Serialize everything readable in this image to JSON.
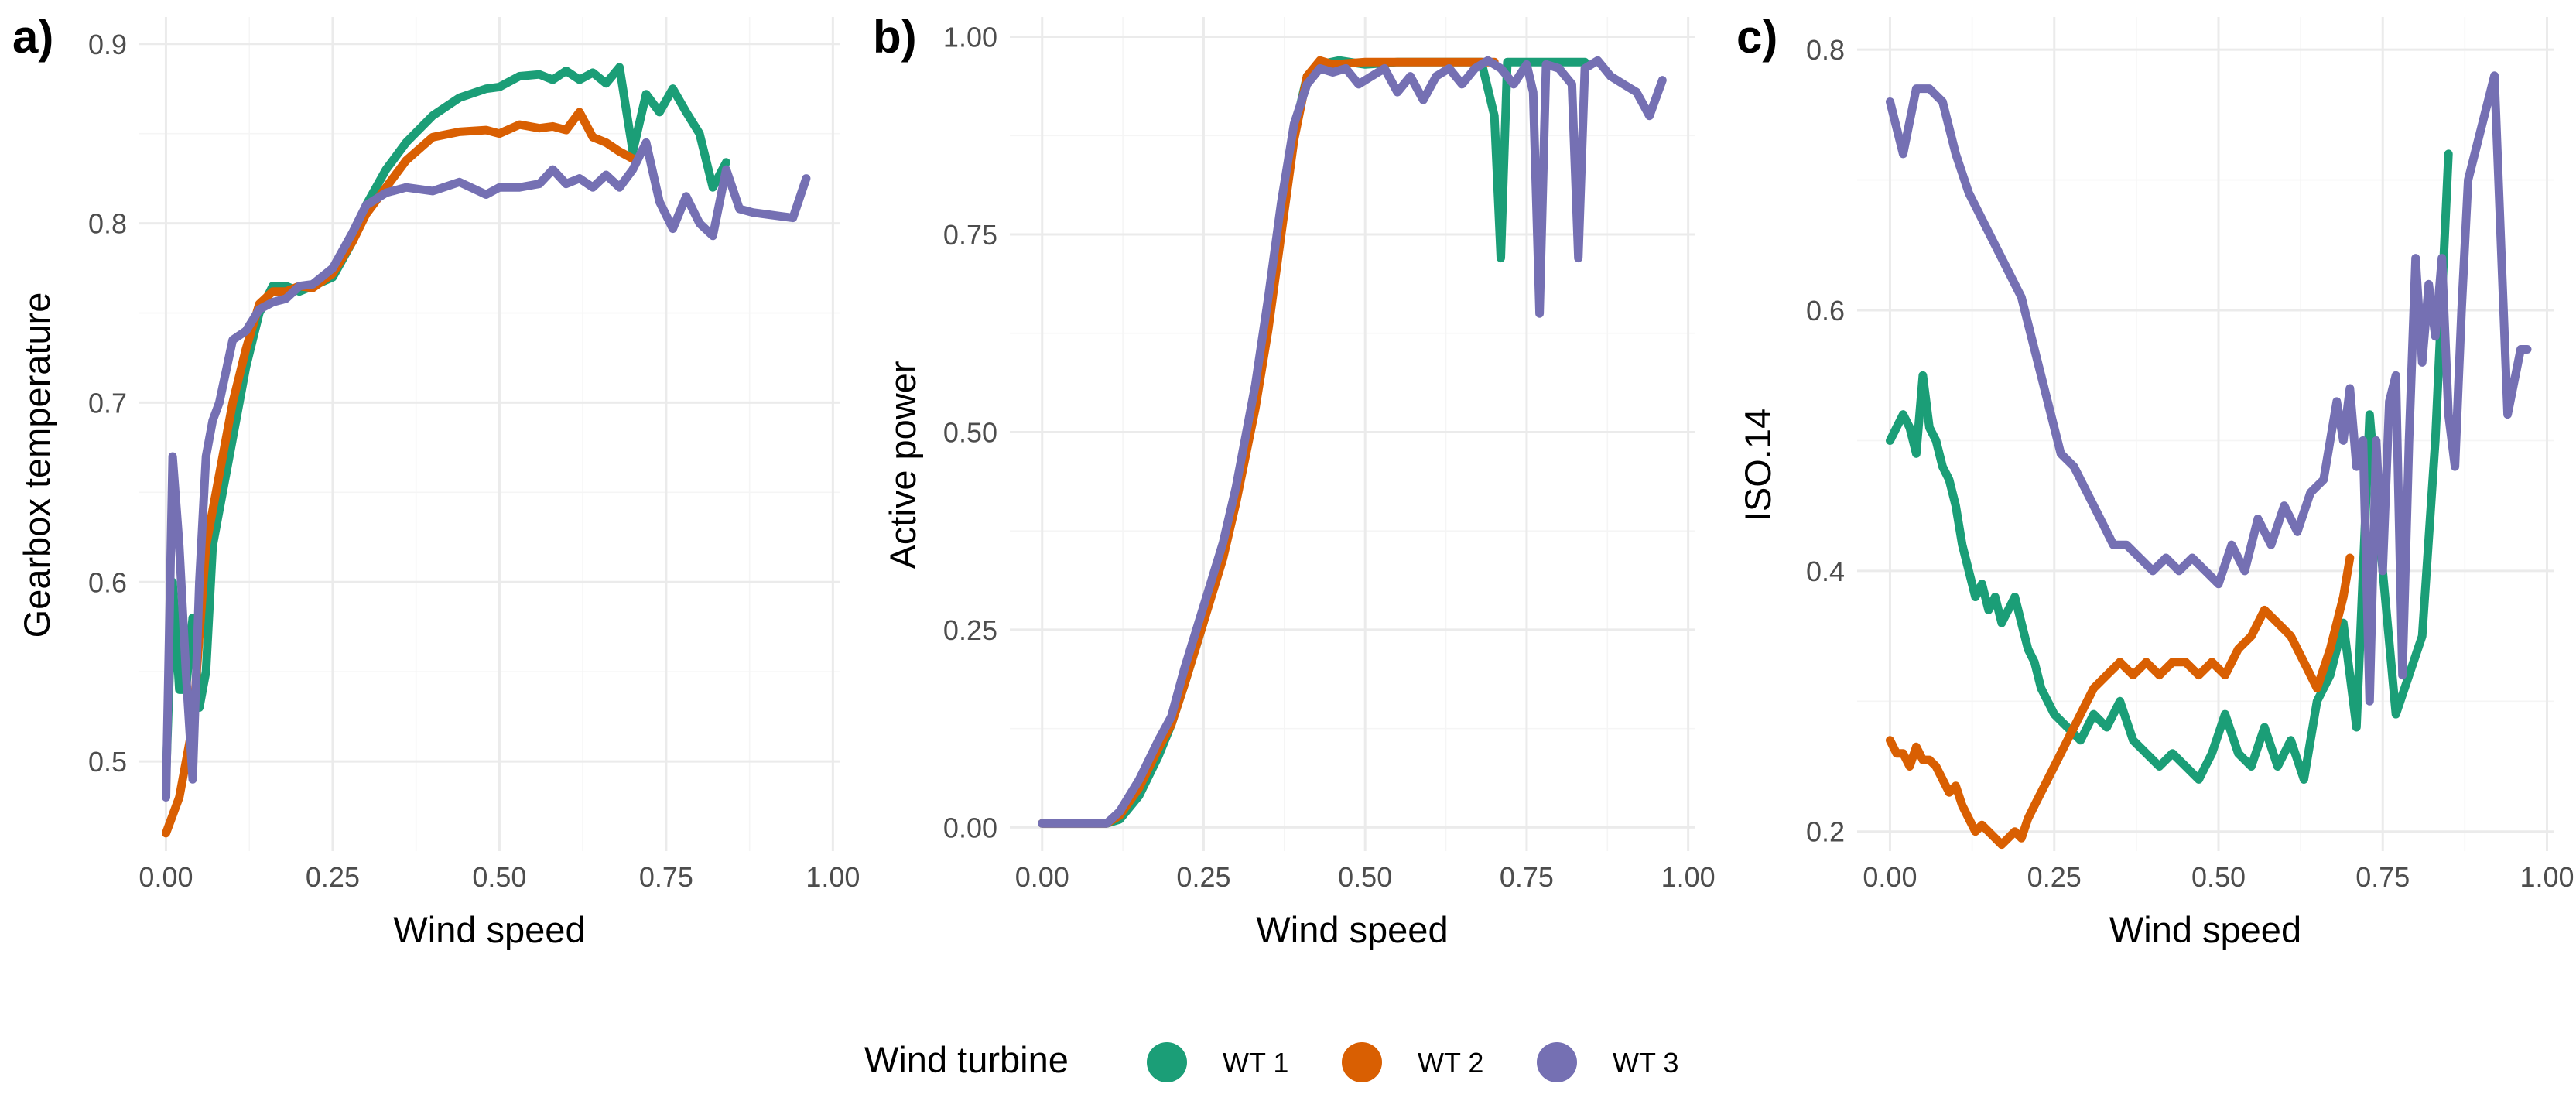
{
  "legend": {
    "title": "Wind turbine",
    "items": [
      {
        "label": "WT 1",
        "color": "#1b9e77"
      },
      {
        "label": "WT 2",
        "color": "#d95f02"
      },
      {
        "label": "WT 3",
        "color": "#7570b3"
      }
    ]
  },
  "chart_data": [
    {
      "type": "line",
      "panel_tag": "a)",
      "title": "",
      "xlabel": "Wind speed",
      "ylabel": "Gearbox temperature",
      "xlim": [
        -0.04,
        1.01
      ],
      "ylim": [
        0.45,
        0.915
      ],
      "xticks": [
        0,
        0.25,
        0.5,
        0.75,
        1.0
      ],
      "xtick_labels": [
        "0.00",
        "0.25",
        "0.50",
        "0.75",
        "1.00"
      ],
      "yticks": [
        0.5,
        0.6,
        0.7,
        0.8,
        0.9
      ],
      "ytick_labels": [
        "0.5",
        "0.6",
        "0.7",
        "0.8",
        "0.9"
      ],
      "series": [
        {
          "name": "WT 1",
          "x": [
            0.0,
            0.01,
            0.02,
            0.03,
            0.04,
            0.05,
            0.06,
            0.07,
            0.08,
            0.1,
            0.12,
            0.14,
            0.16,
            0.18,
            0.2,
            0.22,
            0.25,
            0.28,
            0.3,
            0.33,
            0.36,
            0.4,
            0.44,
            0.48,
            0.5,
            0.53,
            0.56,
            0.58,
            0.6,
            0.62,
            0.64,
            0.66,
            0.68,
            0.7,
            0.72,
            0.74,
            0.76,
            0.78,
            0.8,
            0.82,
            0.84
          ],
          "y": [
            0.49,
            0.6,
            0.54,
            0.54,
            0.58,
            0.53,
            0.55,
            0.62,
            0.64,
            0.68,
            0.72,
            0.75,
            0.765,
            0.765,
            0.762,
            0.765,
            0.77,
            0.79,
            0.81,
            0.83,
            0.845,
            0.86,
            0.87,
            0.875,
            0.876,
            0.882,
            0.883,
            0.88,
            0.885,
            0.88,
            0.884,
            0.878,
            0.887,
            0.84,
            0.872,
            0.862,
            0.875,
            0.862,
            0.85,
            0.82,
            0.834
          ]
        },
        {
          "name": "WT 2",
          "x": [
            0.0,
            0.02,
            0.04,
            0.06,
            0.08,
            0.1,
            0.12,
            0.14,
            0.16,
            0.18,
            0.2,
            0.22,
            0.25,
            0.28,
            0.3,
            0.33,
            0.36,
            0.4,
            0.44,
            0.48,
            0.5,
            0.53,
            0.56,
            0.58,
            0.6,
            0.62,
            0.64,
            0.66,
            0.68,
            0.7
          ],
          "y": [
            0.46,
            0.48,
            0.52,
            0.62,
            0.66,
            0.7,
            0.73,
            0.755,
            0.762,
            0.762,
            0.765,
            0.764,
            0.772,
            0.79,
            0.805,
            0.82,
            0.835,
            0.848,
            0.851,
            0.852,
            0.85,
            0.855,
            0.853,
            0.854,
            0.852,
            0.862,
            0.848,
            0.845,
            0.84,
            0.836
          ]
        },
        {
          "name": "WT 3",
          "x": [
            0.0,
            0.01,
            0.02,
            0.03,
            0.04,
            0.05,
            0.06,
            0.07,
            0.08,
            0.1,
            0.12,
            0.14,
            0.16,
            0.18,
            0.2,
            0.22,
            0.25,
            0.28,
            0.3,
            0.33,
            0.36,
            0.4,
            0.44,
            0.48,
            0.5,
            0.53,
            0.56,
            0.58,
            0.6,
            0.62,
            0.64,
            0.66,
            0.68,
            0.7,
            0.72,
            0.74,
            0.76,
            0.78,
            0.8,
            0.82,
            0.84,
            0.86,
            0.88,
            0.9,
            0.92,
            0.94,
            0.96
          ],
          "y": [
            0.48,
            0.67,
            0.62,
            0.55,
            0.49,
            0.6,
            0.67,
            0.69,
            0.7,
            0.735,
            0.74,
            0.752,
            0.756,
            0.758,
            0.765,
            0.766,
            0.775,
            0.795,
            0.81,
            0.817,
            0.82,
            0.818,
            0.823,
            0.816,
            0.82,
            0.82,
            0.822,
            0.83,
            0.822,
            0.825,
            0.82,
            0.827,
            0.82,
            0.83,
            0.845,
            0.812,
            0.797,
            0.815,
            0.8,
            0.793,
            0.83,
            0.808,
            0.806,
            0.805,
            0.804,
            0.803,
            0.825
          ]
        }
      ]
    },
    {
      "type": "line",
      "panel_tag": "b)",
      "title": "",
      "xlabel": "Wind speed",
      "ylabel": "Active power",
      "xlim": [
        -0.05,
        1.01
      ],
      "ylim": [
        -0.03,
        1.025
      ],
      "xticks": [
        0,
        0.25,
        0.5,
        0.75,
        1.0
      ],
      "xtick_labels": [
        "0.00",
        "0.25",
        "0.50",
        "0.75",
        "1.00"
      ],
      "yticks": [
        0,
        0.25,
        0.5,
        0.75,
        1.0
      ],
      "ytick_labels": [
        "0.00",
        "0.25",
        "0.50",
        "0.75",
        "1.00"
      ],
      "series": [
        {
          "name": "WT 1",
          "x": [
            0.0,
            0.05,
            0.1,
            0.12,
            0.15,
            0.18,
            0.2,
            0.22,
            0.25,
            0.28,
            0.3,
            0.33,
            0.35,
            0.37,
            0.39,
            0.41,
            0.43,
            0.46,
            0.5,
            0.55,
            0.6,
            0.65,
            0.68,
            0.7,
            0.71,
            0.72,
            0.75,
            0.8,
            0.84
          ],
          "y": [
            0.005,
            0.005,
            0.005,
            0.01,
            0.04,
            0.09,
            0.13,
            0.18,
            0.26,
            0.35,
            0.42,
            0.55,
            0.65,
            0.77,
            0.88,
            0.95,
            0.965,
            0.97,
            0.965,
            0.968,
            0.968,
            0.968,
            0.968,
            0.9,
            0.72,
            0.968,
            0.968,
            0.968,
            0.968
          ]
        },
        {
          "name": "WT 2",
          "x": [
            0.0,
            0.05,
            0.1,
            0.12,
            0.15,
            0.18,
            0.2,
            0.22,
            0.25,
            0.28,
            0.3,
            0.33,
            0.35,
            0.37,
            0.39,
            0.41,
            0.43,
            0.45,
            0.5,
            0.55,
            0.6,
            0.65,
            0.7
          ],
          "y": [
            0.005,
            0.005,
            0.005,
            0.015,
            0.05,
            0.1,
            0.13,
            0.18,
            0.26,
            0.34,
            0.41,
            0.53,
            0.63,
            0.75,
            0.87,
            0.95,
            0.97,
            0.965,
            0.968,
            0.968,
            0.968,
            0.968,
            0.968
          ]
        },
        {
          "name": "WT 3",
          "x": [
            0.0,
            0.05,
            0.1,
            0.12,
            0.15,
            0.18,
            0.2,
            0.22,
            0.25,
            0.28,
            0.3,
            0.33,
            0.35,
            0.37,
            0.39,
            0.41,
            0.43,
            0.45,
            0.47,
            0.49,
            0.51,
            0.53,
            0.55,
            0.57,
            0.59,
            0.61,
            0.63,
            0.65,
            0.67,
            0.69,
            0.71,
            0.73,
            0.75,
            0.76,
            0.77,
            0.78,
            0.8,
            0.82,
            0.83,
            0.84,
            0.86,
            0.88,
            0.9,
            0.92,
            0.94,
            0.96
          ],
          "y": [
            0.005,
            0.005,
            0.005,
            0.02,
            0.06,
            0.11,
            0.14,
            0.2,
            0.28,
            0.36,
            0.43,
            0.56,
            0.67,
            0.79,
            0.89,
            0.94,
            0.96,
            0.955,
            0.96,
            0.94,
            0.95,
            0.96,
            0.93,
            0.95,
            0.92,
            0.95,
            0.96,
            0.94,
            0.96,
            0.97,
            0.96,
            0.94,
            0.965,
            0.93,
            0.65,
            0.965,
            0.96,
            0.94,
            0.72,
            0.96,
            0.97,
            0.95,
            0.94,
            0.93,
            0.9,
            0.945
          ]
        }
      ]
    },
    {
      "type": "line",
      "panel_tag": "c)",
      "title": "",
      "xlabel": "Wind speed",
      "ylabel": "ISO.14",
      "xlim": [
        -0.05,
        1.01
      ],
      "ylim": [
        0.185,
        0.825
      ],
      "xticks": [
        0,
        0.25,
        0.5,
        0.75,
        1.0
      ],
      "xtick_labels": [
        "0.00",
        "0.25",
        "0.50",
        "0.75",
        "1.00"
      ],
      "yticks": [
        0.2,
        0.4,
        0.6,
        0.8
      ],
      "ytick_labels": [
        "0.2",
        "0.4",
        "0.6",
        "0.8"
      ],
      "series": [
        {
          "name": "WT 1",
          "x": [
            0.0,
            0.01,
            0.02,
            0.03,
            0.04,
            0.05,
            0.06,
            0.07,
            0.08,
            0.09,
            0.1,
            0.11,
            0.12,
            0.13,
            0.14,
            0.15,
            0.16,
            0.17,
            0.18,
            0.19,
            0.2,
            0.21,
            0.22,
            0.23,
            0.24,
            0.25,
            0.27,
            0.29,
            0.31,
            0.33,
            0.35,
            0.37,
            0.39,
            0.41,
            0.43,
            0.45,
            0.47,
            0.49,
            0.51,
            0.53,
            0.55,
            0.57,
            0.59,
            0.61,
            0.63,
            0.65,
            0.67,
            0.69,
            0.71,
            0.73,
            0.75,
            0.77,
            0.79,
            0.81,
            0.83,
            0.85
          ],
          "y": [
            0.5,
            0.51,
            0.52,
            0.51,
            0.49,
            0.55,
            0.51,
            0.5,
            0.48,
            0.47,
            0.45,
            0.42,
            0.4,
            0.38,
            0.39,
            0.37,
            0.38,
            0.36,
            0.37,
            0.38,
            0.36,
            0.34,
            0.33,
            0.31,
            0.3,
            0.29,
            0.28,
            0.27,
            0.29,
            0.28,
            0.3,
            0.27,
            0.26,
            0.25,
            0.26,
            0.25,
            0.24,
            0.26,
            0.29,
            0.26,
            0.25,
            0.28,
            0.25,
            0.27,
            0.24,
            0.3,
            0.32,
            0.36,
            0.28,
            0.52,
            0.4,
            0.29,
            0.32,
            0.35,
            0.5,
            0.72
          ]
        },
        {
          "name": "WT 2",
          "x": [
            0.0,
            0.01,
            0.02,
            0.03,
            0.04,
            0.05,
            0.06,
            0.07,
            0.08,
            0.09,
            0.1,
            0.11,
            0.12,
            0.13,
            0.14,
            0.15,
            0.16,
            0.17,
            0.18,
            0.19,
            0.2,
            0.21,
            0.22,
            0.23,
            0.24,
            0.25,
            0.27,
            0.29,
            0.31,
            0.33,
            0.35,
            0.37,
            0.39,
            0.41,
            0.43,
            0.45,
            0.47,
            0.49,
            0.51,
            0.53,
            0.55,
            0.57,
            0.59,
            0.61,
            0.63,
            0.65,
            0.67,
            0.69,
            0.7
          ],
          "y": [
            0.27,
            0.26,
            0.26,
            0.25,
            0.265,
            0.255,
            0.255,
            0.25,
            0.24,
            0.23,
            0.235,
            0.22,
            0.21,
            0.2,
            0.205,
            0.2,
            0.195,
            0.19,
            0.195,
            0.2,
            0.195,
            0.21,
            0.22,
            0.23,
            0.24,
            0.25,
            0.27,
            0.29,
            0.31,
            0.32,
            0.33,
            0.32,
            0.33,
            0.32,
            0.33,
            0.33,
            0.32,
            0.33,
            0.32,
            0.34,
            0.35,
            0.37,
            0.36,
            0.35,
            0.33,
            0.31,
            0.34,
            0.38,
            0.41
          ]
        },
        {
          "name": "WT 3",
          "x": [
            0.0,
            0.02,
            0.04,
            0.06,
            0.08,
            0.1,
            0.12,
            0.14,
            0.16,
            0.18,
            0.2,
            0.22,
            0.24,
            0.26,
            0.28,
            0.3,
            0.32,
            0.34,
            0.36,
            0.38,
            0.4,
            0.42,
            0.44,
            0.46,
            0.48,
            0.5,
            0.52,
            0.54,
            0.56,
            0.58,
            0.6,
            0.62,
            0.64,
            0.66,
            0.68,
            0.69,
            0.7,
            0.71,
            0.72,
            0.73,
            0.74,
            0.75,
            0.76,
            0.77,
            0.78,
            0.79,
            0.8,
            0.81,
            0.82,
            0.83,
            0.84,
            0.85,
            0.86,
            0.87,
            0.88,
            0.9,
            0.92,
            0.94,
            0.96,
            0.97
          ],
          "y": [
            0.76,
            0.72,
            0.77,
            0.77,
            0.76,
            0.72,
            0.69,
            0.67,
            0.65,
            0.63,
            0.61,
            0.57,
            0.53,
            0.49,
            0.48,
            0.46,
            0.44,
            0.42,
            0.42,
            0.41,
            0.4,
            0.41,
            0.4,
            0.41,
            0.4,
            0.39,
            0.42,
            0.4,
            0.44,
            0.42,
            0.45,
            0.43,
            0.46,
            0.47,
            0.53,
            0.5,
            0.54,
            0.48,
            0.5,
            0.3,
            0.5,
            0.4,
            0.53,
            0.55,
            0.32,
            0.5,
            0.64,
            0.56,
            0.62,
            0.58,
            0.64,
            0.52,
            0.48,
            0.6,
            0.7,
            0.74,
            0.78,
            0.52,
            0.57,
            0.57
          ]
        }
      ]
    }
  ]
}
